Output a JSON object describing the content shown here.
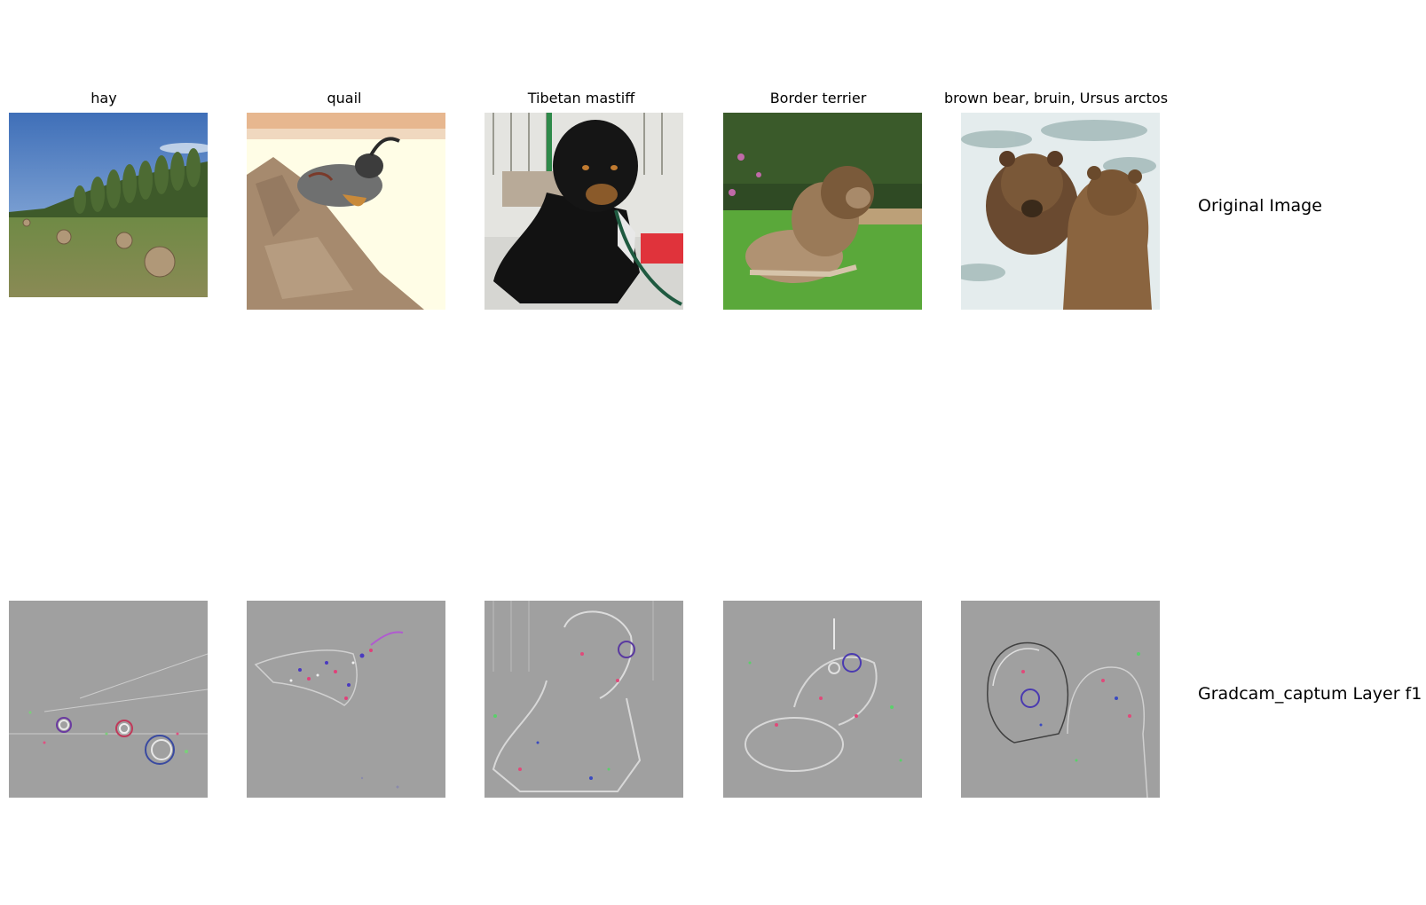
{
  "columns": [
    {
      "title": "hay"
    },
    {
      "title": "quail"
    },
    {
      "title": "Tibetan mastiff"
    },
    {
      "title": "Border terrier"
    },
    {
      "title": "brown bear, bruin, Ursus arctos"
    }
  ],
  "rows": [
    {
      "label": "Original Image"
    },
    {
      "label": "Gradcam_captum Layer f1"
    }
  ]
}
